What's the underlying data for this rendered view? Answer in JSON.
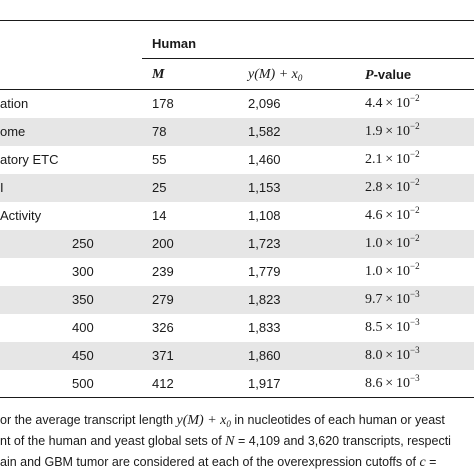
{
  "header": {
    "group_label": "Human",
    "col_m": "M",
    "col_y_main": "y(M) + x",
    "col_y_sub": "0",
    "col_p_italic": "P",
    "col_p_rest": "-value"
  },
  "rows": [
    {
      "label": "ation",
      "threshold": "",
      "m": "178",
      "y": "2,096",
      "p_mant": "4.4",
      "p_exp": "−2",
      "shaded": false
    },
    {
      "label": "ome",
      "threshold": "",
      "m": "78",
      "y": "1,582",
      "p_mant": "1.9",
      "p_exp": "−2",
      "shaded": true
    },
    {
      "label": "atory ETC",
      "threshold": "",
      "m": "55",
      "y": "1,460",
      "p_mant": "2.1",
      "p_exp": "−2",
      "shaded": false
    },
    {
      "label": "I",
      "threshold": "",
      "m": "25",
      "y": "1,153",
      "p_mant": "2.8",
      "p_exp": "−2",
      "shaded": true
    },
    {
      "label": "Activity",
      "threshold": "",
      "m": "14",
      "y": "1,108",
      "p_mant": "4.6",
      "p_exp": "−2",
      "shaded": false
    },
    {
      "label": "",
      "threshold": "250",
      "m": "200",
      "y": "1,723",
      "p_mant": "1.0",
      "p_exp": "−2",
      "shaded": true
    },
    {
      "label": "",
      "threshold": "300",
      "m": "239",
      "y": "1,779",
      "p_mant": "1.0",
      "p_exp": "−2",
      "shaded": false
    },
    {
      "label": "",
      "threshold": "350",
      "m": "279",
      "y": "1,823",
      "p_mant": "9.7",
      "p_exp": "−3",
      "shaded": true
    },
    {
      "label": "",
      "threshold": "400",
      "m": "326",
      "y": "1,833",
      "p_mant": "8.5",
      "p_exp": "−3",
      "shaded": false
    },
    {
      "label": "",
      "threshold": "450",
      "m": "371",
      "y": "1,860",
      "p_mant": "8.0",
      "p_exp": "−3",
      "shaded": true
    },
    {
      "label": "",
      "threshold": "500",
      "m": "412",
      "y": "1,917",
      "p_mant": "8.6",
      "p_exp": "−3",
      "shaded": false
    }
  ],
  "caption": {
    "line1_a": "or the average transcript length ",
    "line1_math": "y(M) + x",
    "line1_sub": "0",
    "line1_b": " in nucleotides of each human or yeast",
    "line2_a": "nt of the human and yeast global sets of ",
    "line2_math": "N",
    "line2_b": " = 4,109 and 3,620 transcripts, respecti",
    "line3_a": "ain and GBM tumor are considered at each of the overexpression cutoffs of ",
    "line3_math": "c",
    "line3_b": " ="
  }
}
